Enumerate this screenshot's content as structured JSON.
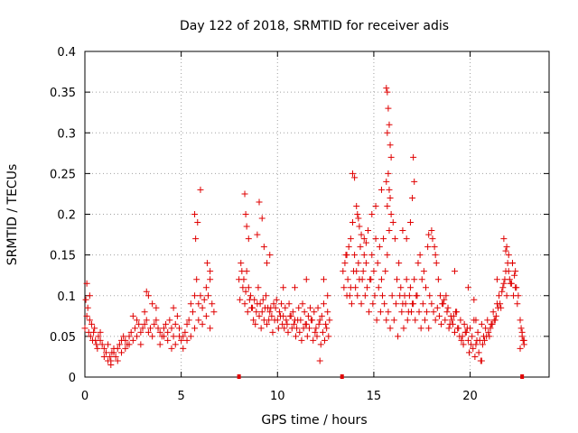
{
  "chart_data": {
    "type": "scatter",
    "title": "Day 122 of 2018, SRMTID for receiver adis",
    "xlabel": "GPS time / hours",
    "ylabel": "SRMTID / TECUs",
    "xlim": [
      0,
      24.1
    ],
    "ylim": [
      0,
      0.4
    ],
    "xticks": [
      0,
      5,
      10,
      15,
      20
    ],
    "xtick_labels": [
      "0",
      "5",
      "10",
      "15",
      "20"
    ],
    "yticks": [
      0,
      0.05,
      0.1,
      0.15,
      0.2,
      0.25,
      0.3,
      0.35,
      0.4
    ],
    "ytick_labels": [
      "0",
      "0.05",
      "0.1",
      "0.15",
      "0.2",
      "0.25",
      "0.3",
      "0.35",
      "0.4"
    ],
    "grid": true,
    "marker": "plus",
    "color": "#e00000",
    "series": [
      {
        "name": "SRMTID",
        "x": [
          0.0,
          0.1,
          0.2,
          0.3,
          0.4,
          0.5,
          0.6,
          0.7,
          0.8,
          0.9,
          1.0,
          1.1,
          1.2,
          1.3,
          1.4,
          1.5,
          1.6,
          1.7,
          1.8,
          1.9,
          2.0,
          2.1,
          2.2,
          2.3,
          2.4,
          2.5,
          2.6,
          2.7,
          2.8,
          2.9,
          3.0,
          3.1,
          3.2,
          3.3,
          3.4,
          3.5,
          3.6,
          3.7,
          3.8,
          3.9,
          4.0,
          4.1,
          4.2,
          4.3,
          4.4,
          4.5,
          4.6,
          4.7,
          4.8,
          4.9,
          5.0,
          5.1,
          5.2,
          5.3,
          5.4,
          5.5,
          5.6,
          5.7,
          5.8,
          5.9,
          6.0,
          6.1,
          6.2,
          6.3,
          6.4,
          6.5,
          6.6,
          6.7,
          0.05,
          0.15,
          0.25,
          0.35,
          0.45,
          0.55,
          0.65,
          0.8,
          1.0,
          1.2,
          1.35,
          1.5,
          1.7,
          1.9,
          2.1,
          2.3,
          2.5,
          2.7,
          2.9,
          3.1,
          3.3,
          3.5,
          3.7,
          3.9,
          4.1,
          4.3,
          4.5,
          4.7,
          4.9,
          5.1,
          5.3,
          5.5,
          5.7,
          5.9,
          6.1,
          6.3,
          6.5,
          5.75,
          5.85,
          5.7,
          6.0,
          6.35,
          6.5,
          3.2,
          0.1,
          0.25,
          1.35,
          4.6,
          8.0,
          8.1,
          8.2,
          8.3,
          8.4,
          8.5,
          8.6,
          8.7,
          8.8,
          8.9,
          9.0,
          9.1,
          9.2,
          9.3,
          9.4,
          9.5,
          9.6,
          9.7,
          9.8,
          9.9,
          10.0,
          10.1,
          10.2,
          10.3,
          10.4,
          10.5,
          10.6,
          10.7,
          10.8,
          10.9,
          11.0,
          11.1,
          11.2,
          11.3,
          11.4,
          11.5,
          11.6,
          11.7,
          11.8,
          11.9,
          12.0,
          12.1,
          12.2,
          12.3,
          12.4,
          12.5,
          12.6,
          12.7,
          8.05,
          8.15,
          8.25,
          8.35,
          8.45,
          8.55,
          8.65,
          8.75,
          8.85,
          8.95,
          9.05,
          9.15,
          9.25,
          9.35,
          9.45,
          9.55,
          9.65,
          9.75,
          9.85,
          9.95,
          10.05,
          10.15,
          10.25,
          10.35,
          10.45,
          10.55,
          10.65,
          10.75,
          10.85,
          10.95,
          11.05,
          11.15,
          11.25,
          11.35,
          11.45,
          11.55,
          11.65,
          11.75,
          11.85,
          11.95,
          12.05,
          12.15,
          12.25,
          12.35,
          12.45,
          12.55,
          12.65,
          8.3,
          8.35,
          8.4,
          8.95,
          9.05,
          9.2,
          9.3,
          9.45,
          8.5,
          9.6,
          10.3,
          10.9,
          11.5,
          12.4,
          12.6,
          12.2,
          13.4,
          13.5,
          13.6,
          13.7,
          13.8,
          13.9,
          14.0,
          14.1,
          14.2,
          14.3,
          14.4,
          14.5,
          14.6,
          14.7,
          14.8,
          14.9,
          15.0,
          15.1,
          15.2,
          15.3,
          15.4,
          15.5,
          15.6,
          15.7,
          15.8,
          15.9,
          16.0,
          16.1,
          16.2,
          16.3,
          16.4,
          16.5,
          16.6,
          16.7,
          16.8,
          16.9,
          17.0,
          17.1,
          17.2,
          17.3,
          17.4,
          17.5,
          17.6,
          17.7,
          17.8,
          17.9,
          13.45,
          13.55,
          13.65,
          13.75,
          13.85,
          13.95,
          14.05,
          14.15,
          14.25,
          14.35,
          14.45,
          14.55,
          14.65,
          14.75,
          14.85,
          14.95,
          15.05,
          15.15,
          15.25,
          15.35,
          15.45,
          15.55,
          15.65,
          15.75,
          15.85,
          15.95,
          16.05,
          16.15,
          16.25,
          16.35,
          16.45,
          16.55,
          16.65,
          16.75,
          16.85,
          16.95,
          17.05,
          17.15,
          17.25,
          17.35,
          17.45,
          17.55,
          17.65,
          17.75,
          17.85,
          15.65,
          15.7,
          15.75,
          15.8,
          15.7,
          15.85,
          15.9,
          15.75,
          15.65,
          15.8,
          15.85,
          15.7,
          14.15,
          14.2,
          14.1,
          14.25,
          14.35,
          14.5,
          14.6,
          17.05,
          17.1,
          17.0,
          13.9,
          14.0,
          14.9,
          15.1,
          15.4,
          16.5,
          16.7,
          16.9,
          13.6,
          13.8,
          18.0,
          18.1,
          18.2,
          18.3,
          18.4,
          18.5,
          18.6,
          18.7,
          18.8,
          18.9,
          19.0,
          19.1,
          19.2,
          19.3,
          19.4,
          19.5,
          19.6,
          19.7,
          19.8,
          19.9,
          20.0,
          20.1,
          20.2,
          20.3,
          20.4,
          20.5,
          20.6,
          20.7,
          20.8,
          20.9,
          21.0,
          21.1,
          21.2,
          21.3,
          21.4,
          21.5,
          21.6,
          21.7,
          21.8,
          21.9,
          22.0,
          22.1,
          22.2,
          22.3,
          22.4,
          22.5,
          18.05,
          18.15,
          18.25,
          18.35,
          18.45,
          18.55,
          18.65,
          18.75,
          18.85,
          18.95,
          19.05,
          19.15,
          19.25,
          19.35,
          19.45,
          19.55,
          19.65,
          19.75,
          19.85,
          19.95,
          20.05,
          20.15,
          20.25,
          20.35,
          20.45,
          20.55,
          20.65,
          20.75,
          20.85,
          20.95,
          21.05,
          21.15,
          21.25,
          21.35,
          21.45,
          21.55,
          21.65,
          21.75,
          21.85,
          21.95,
          22.05,
          22.15,
          22.25,
          22.35,
          22.45,
          21.75,
          21.85,
          21.9,
          22.0,
          22.2,
          22.35,
          21.4,
          17.85,
          18.0,
          18.2,
          19.2,
          19.9,
          20.2,
          20.3,
          20.6,
          22.6,
          22.65,
          22.7,
          22.75,
          22.8,
          22.6,
          22.7,
          22.8
        ],
        "y": [
          0.06,
          0.075,
          0.055,
          0.05,
          0.045,
          0.06,
          0.04,
          0.05,
          0.045,
          0.04,
          0.035,
          0.03,
          0.04,
          0.025,
          0.03,
          0.035,
          0.025,
          0.035,
          0.04,
          0.045,
          0.05,
          0.045,
          0.04,
          0.05,
          0.055,
          0.045,
          0.06,
          0.05,
          0.065,
          0.055,
          0.06,
          0.065,
          0.07,
          0.055,
          0.06,
          0.05,
          0.065,
          0.07,
          0.06,
          0.055,
          0.05,
          0.06,
          0.065,
          0.055,
          0.07,
          0.06,
          0.05,
          0.065,
          0.075,
          0.06,
          0.045,
          0.05,
          0.055,
          0.065,
          0.07,
          0.09,
          0.08,
          0.1,
          0.12,
          0.09,
          0.1,
          0.085,
          0.095,
          0.11,
          0.1,
          0.12,
          0.09,
          0.08,
          0.095,
          0.085,
          0.07,
          0.065,
          0.055,
          0.045,
          0.035,
          0.055,
          0.025,
          0.02,
          0.015,
          0.03,
          0.02,
          0.03,
          0.035,
          0.04,
          0.075,
          0.07,
          0.04,
          0.08,
          0.1,
          0.09,
          0.085,
          0.04,
          0.05,
          0.045,
          0.035,
          0.04,
          0.05,
          0.035,
          0.045,
          0.05,
          0.06,
          0.07,
          0.065,
          0.075,
          0.06,
          0.17,
          0.19,
          0.2,
          0.23,
          0.14,
          0.13,
          0.105,
          0.115,
          0.1,
          0.02,
          0.085,
          0.12,
          0.14,
          0.11,
          0.09,
          0.13,
          0.11,
          0.1,
          0.085,
          0.095,
          0.08,
          0.11,
          0.09,
          0.08,
          0.07,
          0.1,
          0.085,
          0.08,
          0.075,
          0.09,
          0.085,
          0.07,
          0.08,
          0.09,
          0.075,
          0.085,
          0.065,
          0.09,
          0.075,
          0.08,
          0.07,
          0.06,
          0.085,
          0.07,
          0.09,
          0.08,
          0.065,
          0.075,
          0.085,
          0.07,
          0.08,
          0.06,
          0.085,
          0.07,
          0.075,
          0.09,
          0.065,
          0.08,
          0.07,
          0.095,
          0.13,
          0.12,
          0.105,
          0.08,
          0.095,
          0.085,
          0.07,
          0.065,
          0.09,
          0.075,
          0.06,
          0.095,
          0.085,
          0.065,
          0.07,
          0.085,
          0.055,
          0.07,
          0.095,
          0.06,
          0.075,
          0.065,
          0.06,
          0.07,
          0.055,
          0.075,
          0.06,
          0.065,
          0.05,
          0.07,
          0.055,
          0.045,
          0.06,
          0.065,
          0.05,
          0.06,
          0.07,
          0.045,
          0.055,
          0.05,
          0.065,
          0.04,
          0.055,
          0.045,
          0.06,
          0.05,
          0.225,
          0.2,
          0.185,
          0.175,
          0.215,
          0.195,
          0.16,
          0.14,
          0.17,
          0.15,
          0.11,
          0.11,
          0.12,
          0.12,
          0.1,
          0.02,
          0.13,
          0.14,
          0.15,
          0.16,
          0.17,
          0.19,
          0.15,
          0.13,
          0.14,
          0.16,
          0.12,
          0.15,
          0.14,
          0.18,
          0.12,
          0.15,
          0.13,
          0.17,
          0.14,
          0.16,
          0.12,
          0.17,
          0.13,
          0.15,
          0.18,
          0.2,
          0.19,
          0.17,
          0.12,
          0.14,
          0.11,
          0.09,
          0.1,
          0.12,
          0.08,
          0.11,
          0.09,
          0.12,
          0.1,
          0.14,
          0.15,
          0.12,
          0.13,
          0.11,
          0.16,
          0.1,
          0.11,
          0.15,
          0.12,
          0.1,
          0.09,
          0.13,
          0.11,
          0.1,
          0.12,
          0.09,
          0.13,
          0.1,
          0.11,
          0.08,
          0.12,
          0.09,
          0.1,
          0.07,
          0.11,
          0.08,
          0.1,
          0.09,
          0.07,
          0.08,
          0.06,
          0.1,
          0.07,
          0.09,
          0.05,
          0.1,
          0.08,
          0.06,
          0.09,
          0.07,
          0.1,
          0.08,
          0.09,
          0.07,
          0.1,
          0.08,
          0.06,
          0.09,
          0.07,
          0.08,
          0.06,
          0.355,
          0.35,
          0.33,
          0.31,
          0.3,
          0.285,
          0.27,
          0.25,
          0.24,
          0.23,
          0.22,
          0.21,
          0.2,
          0.195,
          0.21,
          0.185,
          0.175,
          0.17,
          0.165,
          0.27,
          0.24,
          0.22,
          0.25,
          0.245,
          0.2,
          0.21,
          0.23,
          0.18,
          0.17,
          0.19,
          0.1,
          0.11,
          0.09,
          0.08,
          0.07,
          0.085,
          0.075,
          0.065,
          0.09,
          0.07,
          0.08,
          0.06,
          0.075,
          0.065,
          0.055,
          0.08,
          0.06,
          0.07,
          0.05,
          0.065,
          0.055,
          0.045,
          0.06,
          0.05,
          0.07,
          0.04,
          0.055,
          0.045,
          0.065,
          0.05,
          0.06,
          0.07,
          0.05,
          0.065,
          0.08,
          0.07,
          0.09,
          0.1,
          0.085,
          0.11,
          0.12,
          0.1,
          0.13,
          0.115,
          0.14,
          0.125,
          0.11,
          0.1,
          0.17,
          0.16,
          0.14,
          0.12,
          0.1,
          0.09,
          0.095,
          0.1,
          0.085,
          0.065,
          0.07,
          0.075,
          0.08,
          0.06,
          0.05,
          0.045,
          0.04,
          0.055,
          0.06,
          0.03,
          0.04,
          0.035,
          0.025,
          0.045,
          0.03,
          0.02,
          0.04,
          0.045,
          0.05,
          0.055,
          0.06,
          0.065,
          0.07,
          0.075,
          0.085,
          0.09,
          0.105,
          0.115,
          0.13,
          0.14,
          0.12,
          0.115,
          0.1,
          0.11,
          0.09,
          0.17,
          0.155,
          0.16,
          0.15,
          0.14,
          0.13,
          0.12,
          0.175,
          0.18,
          0.15,
          0.13,
          0.11,
          0.095,
          0.07,
          0.02,
          0.07,
          0.06,
          0.05,
          0.045,
          0.04,
          0.035,
          0.055,
          0.045
        ]
      }
    ],
    "x_markers": [
      8.0,
      13.35,
      22.7
    ]
  }
}
